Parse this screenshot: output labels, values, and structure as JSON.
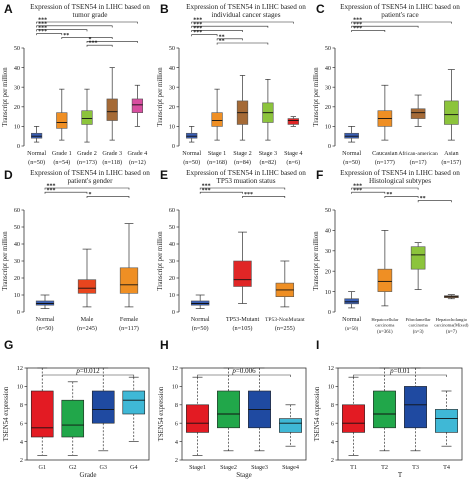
{
  "chart_data": [
    {
      "id": "A",
      "panel_label": "A",
      "type": "box",
      "style": "ualcan",
      "title": [
        "Expression of TSEN54 in LIHC based on",
        "tumor grade"
      ],
      "ylabel": "Transcript per million",
      "ylim": [
        0,
        50
      ],
      "yticks": [
        0,
        10,
        20,
        30,
        40,
        50
      ],
      "categories": [
        "Normal",
        "Grade 1",
        "Grade 2",
        "Grade 3",
        "Grade 4"
      ],
      "counts": [
        "(n=50)",
        "(n=54)",
        "(n=173)",
        "(n=118)",
        "(n=12)"
      ],
      "colors": [
        "#3a5fb5",
        "#ef8f24",
        "#8cc43c",
        "#a56a36",
        "#d84ea0"
      ],
      "boxes": [
        {
          "min": 2,
          "q1": 4,
          "median": 5,
          "q3": 6.5,
          "max": 10
        },
        {
          "min": 3,
          "q1": 9,
          "median": 12,
          "q3": 17,
          "max": 29
        },
        {
          "min": 2,
          "q1": 11,
          "median": 14,
          "q3": 18,
          "max": 29
        },
        {
          "min": 3,
          "q1": 13,
          "median": 17.5,
          "q3": 24,
          "max": 40
        },
        {
          "min": 10,
          "q1": 17,
          "median": 21,
          "q3": 24,
          "max": 31
        }
      ],
      "brackets": [
        {
          "from": 0,
          "to": 4,
          "label": "***"
        },
        {
          "from": 0,
          "to": 3,
          "label": "***"
        },
        {
          "from": 0,
          "to": 2,
          "label": "***"
        },
        {
          "from": 0,
          "to": 1,
          "label": "***"
        },
        {
          "from": 1,
          "to": 3,
          "label": "**"
        },
        {
          "from": 2,
          "to": 4,
          "label": "*"
        },
        {
          "from": 2,
          "to": 3,
          "label": "***"
        }
      ]
    },
    {
      "id": "B",
      "panel_label": "B",
      "type": "box",
      "style": "ualcan",
      "title": [
        "Expression of TSEN54 in LIHC based on",
        "individual cancer stages"
      ],
      "ylabel": "Transcript per million",
      "ylim": [
        0,
        50
      ],
      "yticks": [
        0,
        10,
        20,
        30,
        40,
        50
      ],
      "categories": [
        "Normal",
        "Stage 1",
        "Stage 2",
        "Stage 3",
        "Stage 4"
      ],
      "counts": [
        "(n=50)",
        "(n=168)",
        "(n=84)",
        "(n=82)",
        "(n=6)"
      ],
      "colors": [
        "#3a5fb5",
        "#ef8f24",
        "#a56a36",
        "#8cc43c",
        "#e02626"
      ],
      "boxes": [
        {
          "min": 2,
          "q1": 4,
          "median": 5,
          "q3": 6.5,
          "max": 10
        },
        {
          "min": 3,
          "q1": 10,
          "median": 13,
          "q3": 17,
          "max": 29
        },
        {
          "min": 3,
          "q1": 11,
          "median": 17,
          "q3": 23,
          "max": 36
        },
        {
          "min": 3,
          "q1": 12,
          "median": 17,
          "q3": 22,
          "max": 34
        },
        {
          "min": 10,
          "q1": 11,
          "median": 13,
          "q3": 14,
          "max": 15
        }
      ],
      "brackets": [
        {
          "from": 0,
          "to": 4,
          "label": "***"
        },
        {
          "from": 0,
          "to": 3,
          "label": "***"
        },
        {
          "from": 0,
          "to": 2,
          "label": "***"
        },
        {
          "from": 0,
          "to": 1,
          "label": "***"
        },
        {
          "from": 1,
          "to": 2,
          "label": "**"
        },
        {
          "from": 1,
          "to": 3,
          "label": "**"
        }
      ]
    },
    {
      "id": "C",
      "panel_label": "C",
      "type": "box",
      "style": "ualcan",
      "title": [
        "Expression of TSEN54 in LIHC based on",
        "patient's race"
      ],
      "ylabel": "Transcript per million",
      "ylim": [
        0,
        50
      ],
      "yticks": [
        0,
        10,
        20,
        30,
        40,
        50
      ],
      "categories": [
        "Normal",
        "Caucasian",
        "African-american",
        "Asian"
      ],
      "counts": [
        "(n=50)",
        "(n=177)",
        "(n=17)",
        "(n=157)"
      ],
      "colors": [
        "#3a5fb5",
        "#ef8f24",
        "#a56a36",
        "#8cc43c"
      ],
      "boxes": [
        {
          "min": 2,
          "q1": 4,
          "median": 5,
          "q3": 6.5,
          "max": 10
        },
        {
          "min": 3,
          "q1": 10,
          "median": 14,
          "q3": 18,
          "max": 31
        },
        {
          "min": 10,
          "q1": 14,
          "median": 17,
          "q3": 19,
          "max": 26
        },
        {
          "min": 3,
          "q1": 11,
          "median": 16,
          "q3": 23,
          "max": 39
        }
      ],
      "brackets": [
        {
          "from": 0,
          "to": 3,
          "label": "***"
        },
        {
          "from": 0,
          "to": 2,
          "label": "***"
        },
        {
          "from": 0,
          "to": 1,
          "label": "***"
        }
      ]
    },
    {
      "id": "D",
      "panel_label": "D",
      "type": "box",
      "style": "ualcan",
      "title": [
        "Expression of TSEN54 in LIHC based on",
        "patient's gender"
      ],
      "ylabel": "Transcript per million",
      "ylim": [
        0,
        60
      ],
      "yticks": [
        0,
        10,
        20,
        30,
        40,
        50,
        60
      ],
      "categories": [
        "Normal",
        "Male",
        "Female"
      ],
      "counts": [
        "(n=50)",
        "(n=245)",
        "(n=117)"
      ],
      "colors": [
        "#3a5fb5",
        "#e8451e",
        "#ef8f24"
      ],
      "boxes": [
        {
          "min": 2,
          "q1": 4,
          "median": 5,
          "q3": 6.5,
          "max": 10
        },
        {
          "min": 3,
          "q1": 11,
          "median": 14,
          "q3": 19,
          "max": 37
        },
        {
          "min": 3,
          "q1": 11,
          "median": 16,
          "q3": 26,
          "max": 52
        }
      ],
      "brackets": [
        {
          "from": 0,
          "to": 2,
          "label": "***"
        },
        {
          "from": 0,
          "to": 1,
          "label": "***"
        },
        {
          "from": 1,
          "to": 2,
          "label": "*"
        }
      ]
    },
    {
      "id": "E",
      "panel_label": "E",
      "type": "box",
      "style": "ualcan",
      "title": [
        "Expression of TSEN54 in LIHC based on",
        "TP53 muation status"
      ],
      "ylabel": "Transcript per million",
      "ylim": [
        0,
        60
      ],
      "yticks": [
        0,
        10,
        20,
        30,
        40,
        50,
        60
      ],
      "categories": [
        "Normal",
        "TP53-Mutant",
        "TP53-NonMutant"
      ],
      "counts": [
        "(n=50)",
        "(n=105)",
        "(n=255)"
      ],
      "colors": [
        "#3a5fb5",
        "#e02626",
        "#ef8f24"
      ],
      "boxes": [
        {
          "min": 2,
          "q1": 4,
          "median": 5,
          "q3": 6.5,
          "max": 10
        },
        {
          "min": 5,
          "q1": 15,
          "median": 19,
          "q3": 30,
          "max": 47
        },
        {
          "min": 3,
          "q1": 9,
          "median": 13,
          "q3": 17,
          "max": 30
        }
      ],
      "brackets": [
        {
          "from": 0,
          "to": 2,
          "label": "***"
        },
        {
          "from": 0,
          "to": 1,
          "label": "***"
        },
        {
          "from": 1,
          "to": 2,
          "label": "***"
        }
      ]
    },
    {
      "id": "F",
      "panel_label": "F",
      "type": "box",
      "style": "ualcan",
      "title": [
        "Expression of TSEN54 in LIHC based on",
        "Histological subtypes"
      ],
      "ylabel": "Transcript per million",
      "ylim": [
        0,
        50
      ],
      "yticks": [
        0,
        10,
        20,
        30,
        40,
        50
      ],
      "categories": [
        "Normal",
        "Hepatocellular carcinoma",
        "Fibrolamellar carcinoma",
        "Hepatocholangio carcinoma(Mixed)"
      ],
      "counts": [
        "(n=50)",
        "(n=361)",
        "(n=3)",
        "(n=7)"
      ],
      "colors": [
        "#3a5fb5",
        "#ef8f24",
        "#8cc43c",
        "#a56a36"
      ],
      "boxes": [
        {
          "min": 2,
          "q1": 4,
          "median": 5,
          "q3": 6.5,
          "max": 10
        },
        {
          "min": 3,
          "q1": 10,
          "median": 15,
          "q3": 21,
          "max": 40
        },
        {
          "min": 11,
          "q1": 21,
          "median": 28,
          "q3": 32,
          "max": 34
        },
        {
          "min": 6.5,
          "q1": 7,
          "median": 7.5,
          "q3": 8,
          "max": 8.5
        }
      ],
      "brackets": [
        {
          "from": 0,
          "to": 2,
          "label": "***"
        },
        {
          "from": 0,
          "to": 1,
          "label": "***"
        },
        {
          "from": 1,
          "to": 2,
          "label": "**"
        },
        {
          "from": 2,
          "to": 3,
          "label": "**"
        }
      ]
    },
    {
      "id": "G",
      "panel_label": "G",
      "type": "box",
      "style": "classic",
      "ylabel": "TSEN54 expression",
      "xlabel": "Grade",
      "ylim": [
        2,
        12
      ],
      "yticks": [
        2,
        4,
        6,
        8,
        10,
        12
      ],
      "categories": [
        "G1",
        "G2",
        "G3",
        "G4"
      ],
      "colors": [
        "#e31b23",
        "#21a74a",
        "#1f4aa1",
        "#3fb8d6"
      ],
      "boxes": [
        {
          "min": 2.5,
          "q1": 4.5,
          "median": 5.5,
          "q3": 9.5,
          "max": 12
        },
        {
          "min": 2.5,
          "q1": 4.5,
          "median": 5.8,
          "q3": 8.5,
          "max": 10.5
        },
        {
          "min": 3,
          "q1": 6,
          "median": 7.5,
          "q3": 9.5,
          "max": 12
        },
        {
          "min": 4,
          "q1": 7,
          "median": 8.5,
          "q3": 9.5,
          "max": 11
        }
      ],
      "pvalue": "=0.012"
    },
    {
      "id": "H",
      "panel_label": "H",
      "type": "box",
      "style": "classic",
      "ylabel": "TSEN54 expression",
      "xlabel": "Stage",
      "ylim": [
        2,
        12
      ],
      "yticks": [
        2,
        4,
        6,
        8,
        10,
        12
      ],
      "categories": [
        "Stage1",
        "Stage2",
        "Stage3",
        "Stage4"
      ],
      "colors": [
        "#e31b23",
        "#21a74a",
        "#1f4aa1",
        "#3fb8d6"
      ],
      "boxes": [
        {
          "min": 2.5,
          "q1": 5,
          "median": 6,
          "q3": 8,
          "max": 11
        },
        {
          "min": 3,
          "q1": 5.5,
          "median": 7,
          "q3": 9.5,
          "max": 12
        },
        {
          "min": 3,
          "q1": 5.5,
          "median": 7.5,
          "q3": 9.5,
          "max": 12
        },
        {
          "min": 3.5,
          "q1": 5,
          "median": 6,
          "q3": 6.5,
          "max": 8
        }
      ],
      "pvalue": "=0.006"
    },
    {
      "id": "I",
      "panel_label": "I",
      "type": "box",
      "style": "classic",
      "ylabel": "TSEN54 expression",
      "xlabel": "T",
      "ylim": [
        2,
        12
      ],
      "yticks": [
        2,
        4,
        6,
        8,
        10,
        12
      ],
      "categories": [
        "T1",
        "T2",
        "T3",
        "T4"
      ],
      "colors": [
        "#e31b23",
        "#21a74a",
        "#1f4aa1",
        "#3fb8d6"
      ],
      "boxes": [
        {
          "min": 2.5,
          "q1": 5,
          "median": 6,
          "q3": 8,
          "max": 11
        },
        {
          "min": 3,
          "q1": 5.5,
          "median": 7,
          "q3": 9.5,
          "max": 12
        },
        {
          "min": 3,
          "q1": 5.5,
          "median": 8,
          "q3": 10,
          "max": 12
        },
        {
          "min": 3.5,
          "q1": 5,
          "median": 6.5,
          "q3": 7.5,
          "max": 9.5
        }
      ],
      "pvalue": "=0.01"
    }
  ]
}
